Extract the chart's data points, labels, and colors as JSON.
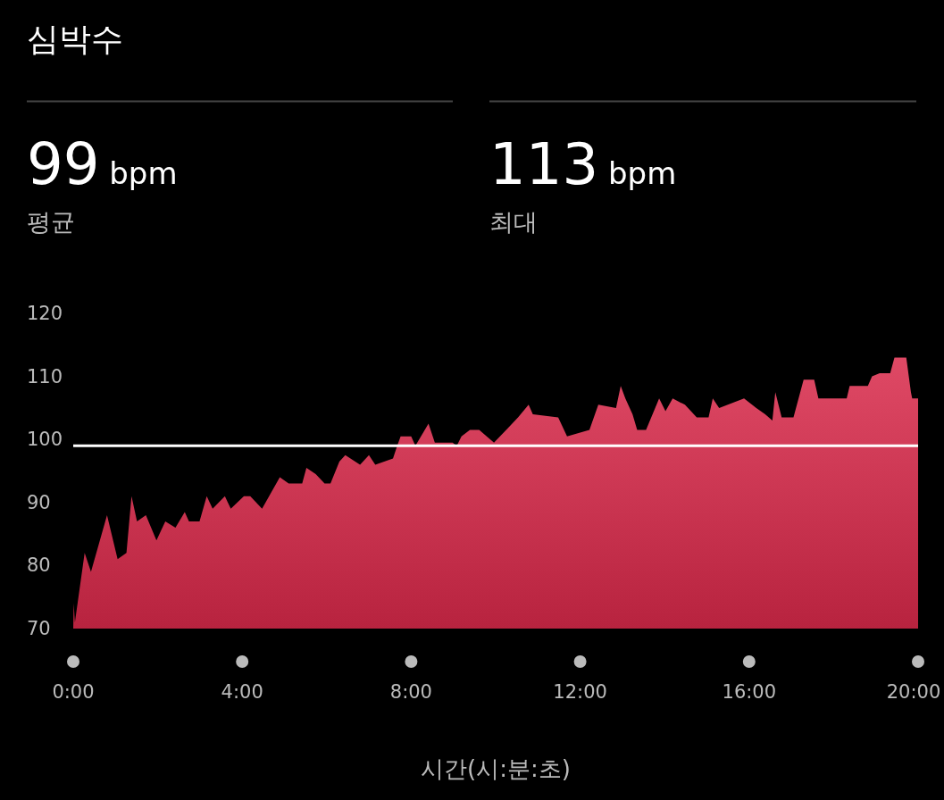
{
  "chart_data": {
    "type": "area",
    "title": "심박수",
    "xlabel": "시간(시:분:초)",
    "annotations": [
      "99 bpm",
      "평균",
      "113 bpm",
      "최대"
    ],
    "xlim": [
      0,
      20
    ],
    "xticks": [
      {
        "value": 0,
        "label": "0:00"
      },
      {
        "value": 4,
        "label": "4:00"
      },
      {
        "value": 8,
        "label": "8:00"
      },
      {
        "value": 12,
        "label": "12:00"
      },
      {
        "value": 16,
        "label": "16:00"
      },
      {
        "value": 20,
        "label": "20:00"
      }
    ],
    "ylim": [
      70,
      120
    ],
    "yticks": [
      70,
      80,
      90,
      100,
      110,
      120
    ],
    "grid": false,
    "ref_lines": [
      {
        "axis": "y",
        "value": 99,
        "color": "#ffffff"
      }
    ],
    "series": [
      {
        "color": "#d9294a",
        "x": [
          0,
          0.01,
          0.04,
          0.27,
          0.42,
          0.8,
          1.05,
          1.26,
          1.38,
          1.51,
          1.72,
          1.97,
          2.18,
          2.42,
          2.64,
          2.74,
          2.99,
          3.16,
          3.3,
          3.59,
          3.73,
          4.04,
          4.19,
          4.47,
          4.89,
          5.1,
          5.42,
          5.52,
          5.74,
          5.95,
          6.09,
          6.3,
          6.44,
          6.79,
          7.0,
          7.15,
          7.57,
          7.67,
          7.75,
          8.0,
          8.1,
          8.41,
          8.56,
          8.98,
          9.08,
          9.19,
          9.39,
          9.61,
          9.96,
          10.25,
          10.53,
          10.78,
          10.88,
          11.48,
          11.69,
          12.22,
          12.43,
          12.85,
          12.96,
          13.07,
          13.24,
          13.35,
          13.56,
          13.87,
          14.02,
          14.19,
          14.48,
          14.76,
          15.04,
          15.14,
          15.29,
          15.88,
          16.17,
          16.38,
          16.55,
          16.62,
          16.77,
          17.05,
          17.29,
          17.54,
          17.64,
          18.31,
          18.38,
          18.81,
          18.91,
          19.09,
          19.34,
          19.44,
          19.72,
          19.83,
          19.86,
          20
        ],
        "values": [
          70,
          74,
          71,
          82,
          79,
          88,
          81,
          82,
          91,
          87,
          88,
          84,
          87,
          86,
          88.5,
          87,
          87,
          91,
          89,
          91,
          89,
          91,
          91,
          89,
          94,
          93,
          93,
          95.5,
          94.5,
          93,
          93,
          96.5,
          97.5,
          96,
          97.5,
          96,
          97,
          99,
          100.5,
          100.5,
          99,
          102.5,
          99.5,
          99.5,
          99,
          100.5,
          101.5,
          101.5,
          99.5,
          101.5,
          103.5,
          105.5,
          104,
          103.5,
          100.5,
          101.5,
          105.5,
          105,
          108.5,
          106.5,
          104,
          101.5,
          101.5,
          106.5,
          104.5,
          106.5,
          105.5,
          103.5,
          103.5,
          106.5,
          105,
          106.5,
          105,
          104,
          103,
          107.5,
          103.5,
          103.5,
          109.5,
          109.5,
          106.5,
          106.5,
          108.5,
          108.5,
          110,
          110.5,
          110.5,
          113,
          113,
          107.5,
          106.5,
          106.5
        ]
      }
    ]
  }
}
